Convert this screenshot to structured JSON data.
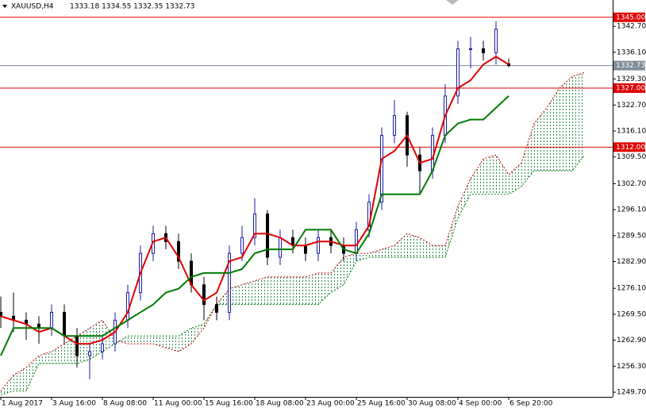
{
  "chart_data": {
    "type": "candlestick",
    "title": "XAUUSD,H4",
    "subtitle": "1333.18 1334.55 1332.35 1332.73",
    "xlim": [
      0,
      193
    ],
    "xticks": [
      {
        "value": 0,
        "label": "1 Aug 2017"
      },
      {
        "value": 16,
        "label": "3 Aug 16:00"
      },
      {
        "value": 32,
        "label": "8 Aug 08:00"
      },
      {
        "value": 48,
        "label": "11 Aug 00:00"
      },
      {
        "value": 64,
        "label": "15 Aug 16:00"
      },
      {
        "value": 80,
        "label": "18 Aug 08:00"
      },
      {
        "value": 96,
        "label": "23 Aug 00:00"
      },
      {
        "value": 112,
        "label": "25 Aug 16:00"
      },
      {
        "value": 128,
        "label": "30 Aug 08:00"
      },
      {
        "value": 144,
        "label": "4 Sep 00:00"
      },
      {
        "value": 160,
        "label": "6 Sep 20:00"
      }
    ],
    "ylim": [
      1248.5,
      1349.4
    ],
    "yticks": [
      {
        "value": 1342.7,
        "label": "1342.70"
      },
      {
        "value": 1336.1,
        "label": "1336.10"
      },
      {
        "value": 1329.3,
        "label": "1329.30"
      },
      {
        "value": 1322.7,
        "label": "1322.70"
      },
      {
        "value": 1316.1,
        "label": "1316.10"
      },
      {
        "value": 1309.5,
        "label": "1309.50"
      },
      {
        "value": 1302.7,
        "label": "1302.70"
      },
      {
        "value": 1296.1,
        "label": "1296.10"
      },
      {
        "value": 1289.5,
        "label": "1289.50"
      },
      {
        "value": 1282.9,
        "label": "1282.90"
      },
      {
        "value": 1276.1,
        "label": "1276.10"
      },
      {
        "value": 1269.5,
        "label": "1269.50"
      },
      {
        "value": 1262.9,
        "label": "1262.90"
      },
      {
        "value": 1256.3,
        "label": "1256.30"
      },
      {
        "value": 1249.7,
        "label": "1249.70"
      }
    ],
    "x": [
      0,
      4,
      8,
      12,
      16,
      20,
      24,
      28,
      32,
      36,
      40,
      44,
      48,
      52,
      56,
      60,
      64,
      68,
      72,
      76,
      80,
      84,
      88,
      92,
      96,
      100,
      104,
      108,
      112,
      116,
      120,
      124,
      128,
      132,
      136,
      140,
      144,
      148,
      152,
      156,
      160
    ],
    "open": [
      1270,
      1269,
      1268,
      1267,
      1266,
      1270,
      1264,
      1259,
      1260,
      1262,
      1268,
      1275,
      1285,
      1290,
      1288,
      1283,
      1277,
      1272,
      1270,
      1285,
      1289,
      1295,
      1284,
      1289,
      1287,
      1285,
      1289,
      1287,
      1285,
      1291,
      1298,
      1315,
      1320,
      1310,
      1306,
      1315,
      1325,
      1337,
      1337,
      1336,
      1333.18
    ],
    "high": [
      1274,
      1275,
      1270,
      1269,
      1272,
      1272,
      1266,
      1262,
      1264,
      1270,
      1277,
      1287,
      1292,
      1292,
      1290,
      1285,
      1279,
      1274,
      1287,
      1292,
      1299,
      1296,
      1291,
      1291,
      1289,
      1291,
      1291,
      1289,
      1293,
      1300,
      1317,
      1324,
      1321,
      1312,
      1317,
      1328,
      1339,
      1340,
      1339,
      1344,
      1334.55
    ],
    "low": [
      1266,
      1265,
      1263,
      1262,
      1264,
      1262,
      1256,
      1253,
      1258,
      1260,
      1266,
      1273,
      1283,
      1286,
      1281,
      1275,
      1268,
      1268,
      1268,
      1283,
      1287,
      1282,
      1282,
      1285,
      1283,
      1283,
      1285,
      1283,
      1283,
      1289,
      1296,
      1313,
      1307,
      1300,
      1304,
      1313,
      1323,
      1332,
      1334,
      1333,
      1332.35
    ],
    "close": [
      1269,
      1268,
      1267,
      1266,
      1270,
      1264,
      1259,
      1260,
      1262,
      1268,
      1275,
      1285,
      1290,
      1288,
      1283,
      1277,
      1272,
      1270,
      1285,
      1289,
      1295,
      1284,
      1289,
      1287,
      1285,
      1289,
      1287,
      1285,
      1291,
      1298,
      1315,
      1320,
      1310,
      1306,
      1315,
      1325,
      1337,
      1337,
      1336,
      1342,
      1332.73
    ],
    "up_color": "#1a1aa6",
    "down_color": "#000000",
    "series": [
      {
        "color": "#e00000",
        "values": [
          1269,
          1268,
          1267,
          1265,
          1266,
          1264,
          1262,
          1262,
          1263,
          1265,
          1270,
          1280,
          1288,
          1289,
          1284,
          1277,
          1273,
          1275,
          1283,
          1284,
          1290,
          1290,
          1289,
          1287,
          1287,
          1288,
          1288,
          1287,
          1287,
          1292,
          1309,
          1311,
          1315,
          1308,
          1309,
          1320,
          1327,
          1329,
          1333,
          1335,
          1333
        ]
      },
      {
        "color": "#007a00",
        "values": [
          1259,
          1266,
          1266,
          1266,
          1266,
          1264,
          1264,
          1264,
          1264,
          1266,
          1268,
          1270,
          1272,
          1275,
          1276,
          1279,
          1280,
          1280,
          1280,
          1281,
          1285,
          1286,
          1286,
          1286,
          1291,
          1291,
          1291,
          1286,
          1285,
          1290,
          1300,
          1300,
          1300,
          1300,
          1306,
          1315,
          1318,
          1319,
          1319,
          1322,
          1325
        ]
      }
    ],
    "cloud": {
      "x": [
        0,
        4,
        8,
        12,
        16,
        20,
        24,
        28,
        32,
        36,
        40,
        44,
        48,
        52,
        56,
        60,
        64,
        68,
        72,
        76,
        80,
        84,
        88,
        92,
        96,
        100,
        104,
        108,
        112,
        116,
        120,
        124,
        128,
        132,
        136,
        140,
        144,
        148,
        152,
        156,
        160,
        164,
        168,
        172,
        176,
        180,
        184
      ],
      "span_a": [
        1250,
        1254,
        1256,
        1259,
        1260,
        1262,
        1264,
        1266,
        1268,
        1263,
        1262,
        1262,
        1262,
        1261,
        1260,
        1262,
        1266,
        1272,
        1276,
        1277,
        1278,
        1279,
        1279,
        1279,
        1279,
        1280,
        1280,
        1284,
        1285,
        1285,
        1286,
        1287,
        1290,
        1289,
        1287,
        1287,
        1297,
        1304,
        1309,
        1310,
        1305,
        1308,
        1318,
        1322,
        1327,
        1330,
        1331
      ],
      "span_b": [
        1249,
        1250,
        1250,
        1257,
        1257,
        1257,
        1257,
        1258,
        1260,
        1262,
        1264,
        1264,
        1264,
        1264,
        1264,
        1266,
        1267,
        1272,
        1272,
        1272,
        1272,
        1272,
        1272,
        1272,
        1272,
        1272,
        1275,
        1277,
        1283,
        1284,
        1284,
        1284,
        1284,
        1284,
        1284,
        1284,
        1294,
        1300,
        1300,
        1300,
        1300,
        1302,
        1306,
        1306,
        1306,
        1306,
        1310
      ],
      "color_a": "#c00000",
      "color_b": "#007a00"
    },
    "hlines": [
      {
        "value": 1345,
        "label": "1345.00",
        "color": "#e00000"
      },
      {
        "value": 1327,
        "label": "1327.00",
        "color": "#e00000"
      },
      {
        "value": 1312,
        "label": "1312.00",
        "color": "#e00000"
      },
      {
        "value": 1332.73,
        "label": "1332.73",
        "color": "#7f8c99"
      }
    ]
  }
}
